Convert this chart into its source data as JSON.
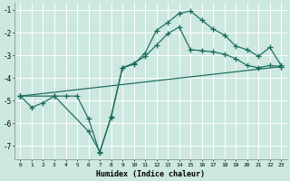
{
  "xlabel": "Humidex (Indice chaleur)",
  "bg_color": "#cce8e0",
  "line_color": "#1a6b5a",
  "grid_color": "#b8d8d0",
  "xlim": [
    -0.5,
    23.5
  ],
  "ylim": [
    -7.6,
    -0.7
  ],
  "yticks": [
    -7,
    -6,
    -5,
    -4,
    -3,
    -2,
    -1
  ],
  "xticks": [
    0,
    1,
    2,
    3,
    4,
    5,
    6,
    7,
    8,
    9,
    10,
    11,
    12,
    13,
    14,
    15,
    16,
    17,
    18,
    19,
    20,
    21,
    22,
    23
  ],
  "line1_x": [
    0,
    1,
    2,
    3,
    4,
    5,
    6,
    7,
    8,
    9,
    10,
    11,
    12,
    13,
    14,
    15,
    16,
    17,
    18,
    19,
    20,
    21,
    22,
    23
  ],
  "line1_y": [
    -4.8,
    -5.3,
    -5.1,
    -4.8,
    -4.8,
    -4.8,
    -5.8,
    -7.3,
    -5.7,
    -3.55,
    -3.4,
    -2.9,
    -1.9,
    -1.55,
    -1.15,
    -1.05,
    -1.45,
    -1.85,
    -2.1,
    -2.6,
    -2.75,
    -3.05,
    -2.65,
    -3.45
  ],
  "line2_x": [
    0,
    3,
    6,
    7,
    8,
    9,
    10,
    11,
    12,
    13,
    14,
    15,
    16,
    17,
    18,
    19,
    20,
    21,
    22,
    23
  ],
  "line2_y": [
    -4.8,
    -4.8,
    -6.35,
    -7.25,
    -5.75,
    -3.55,
    -3.35,
    -3.05,
    -2.55,
    -2.05,
    -1.75,
    -2.75,
    -2.8,
    -2.85,
    -2.95,
    -3.15,
    -3.45,
    -3.55,
    -3.45,
    -3.5
  ],
  "line3_x": [
    0,
    23
  ],
  "line3_y": [
    -4.8,
    -3.5
  ]
}
